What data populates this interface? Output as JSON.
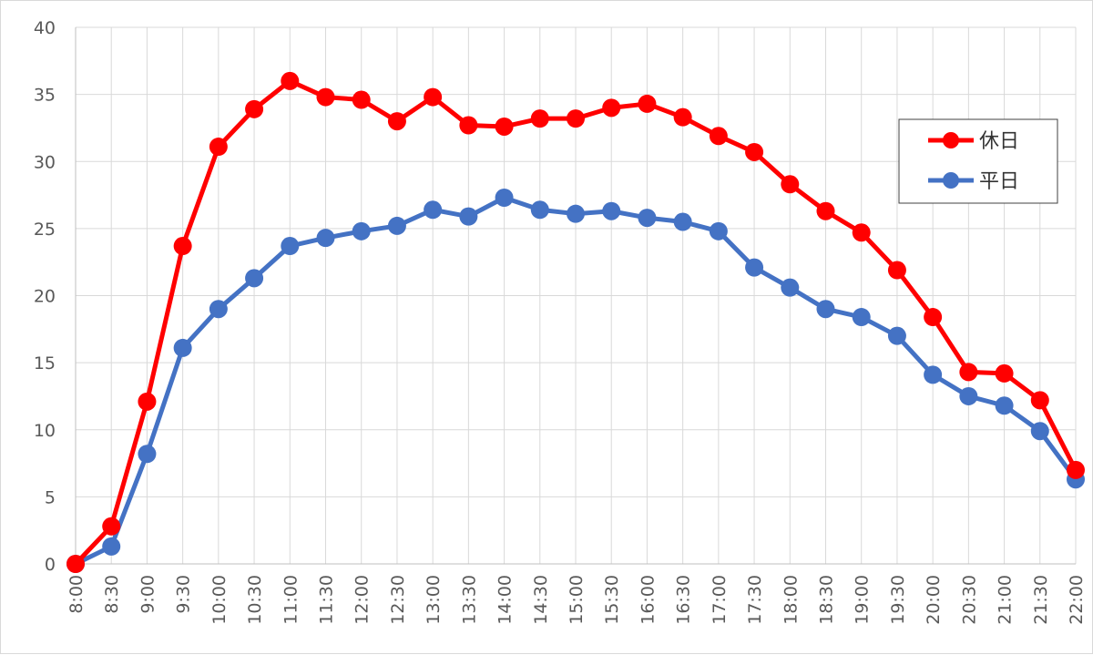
{
  "chart_data": {
    "type": "line",
    "x": [
      "8:00",
      "8:30",
      "9:00",
      "9:30",
      "10:00",
      "10:30",
      "11:00",
      "11:30",
      "12:00",
      "12:30",
      "13:00",
      "13:30",
      "14:00",
      "14:30",
      "15:00",
      "15:30",
      "16:00",
      "16:30",
      "17:00",
      "17:30",
      "18:00",
      "18:30",
      "19:00",
      "19:30",
      "20:00",
      "20:30",
      "21:00",
      "21:30",
      "22:00"
    ],
    "series": [
      {
        "name": "休日",
        "color": "#ff0000",
        "values": [
          0,
          2.8,
          12.1,
          23.7,
          31.1,
          33.9,
          36.0,
          34.8,
          34.6,
          33.0,
          34.8,
          32.7,
          32.6,
          33.2,
          33.2,
          34.0,
          34.3,
          33.3,
          31.9,
          30.7,
          28.3,
          26.3,
          24.7,
          21.9,
          18.4,
          14.3,
          14.2,
          12.2,
          7.0
        ]
      },
      {
        "name": "平日",
        "color": "#4472c4",
        "values": [
          0,
          1.3,
          8.2,
          16.1,
          19.0,
          21.3,
          23.7,
          24.3,
          24.8,
          25.2,
          26.4,
          25.9,
          27.3,
          26.4,
          26.1,
          26.3,
          25.8,
          25.5,
          24.8,
          22.1,
          20.6,
          19.0,
          18.4,
          17.0,
          14.1,
          12.5,
          11.8,
          9.9,
          6.3
        ]
      }
    ],
    "y_ticks": [
      "0",
      "5",
      "10",
      "15",
      "20",
      "25",
      "30",
      "35",
      "40"
    ],
    "ylim": [
      0,
      40
    ],
    "grid": true,
    "legend_position": "right"
  }
}
